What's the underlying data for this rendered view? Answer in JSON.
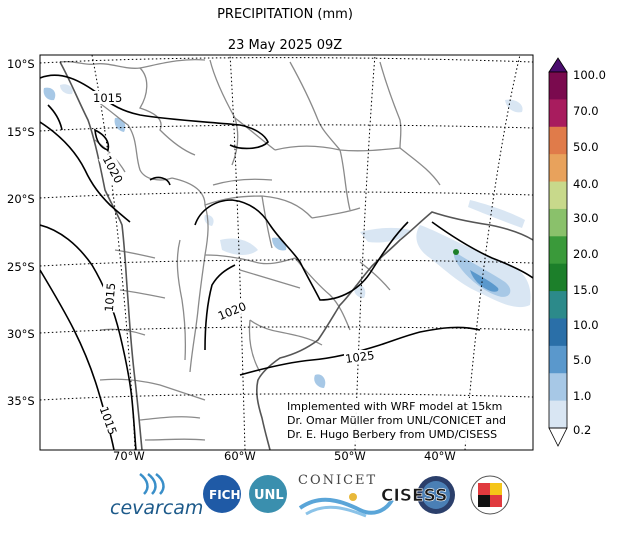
{
  "title": "PRECIPITATION (mm)",
  "subtitle": "23 May 2025 09Z",
  "credits": [
    "Implemented with WRF model at 15km",
    "Dr. Omar Müller from UNL/CONICET and",
    "Dr. E. Hugo Berbery from UMD/CISESS"
  ],
  "lat_labels": [
    "10°S",
    "15°S",
    "20°S",
    "25°S",
    "30°S",
    "35°S"
  ],
  "lon_labels": [
    "70°W",
    "60°W",
    "50°W",
    "40°W"
  ],
  "isobar_labels": [
    "1015",
    "1020",
    "1015",
    "1020",
    "1025",
    "1015"
  ],
  "colorbar": {
    "labels": [
      "100.0",
      "70.0",
      "50.0",
      "40.0",
      "30.0",
      "20.0",
      "15.0",
      "10.0",
      "5.0",
      "1.0",
      "0.2"
    ],
    "colors": [
      "#7a0a4e",
      "#a81c5e",
      "#e07b4a",
      "#e8a25c",
      "#c8d98b",
      "#8ac16b",
      "#3a9a3a",
      "#1c7f2a",
      "#2c8a8a",
      "#2a6fa8",
      "#5a98cc",
      "#a7c8e6",
      "#d9e6f3"
    ]
  },
  "logos": {
    "cevarcam": "cevarcam",
    "fich": "FICH",
    "unl": "UNL",
    "conicet": "CONICET",
    "cisess": "CISESS"
  }
}
